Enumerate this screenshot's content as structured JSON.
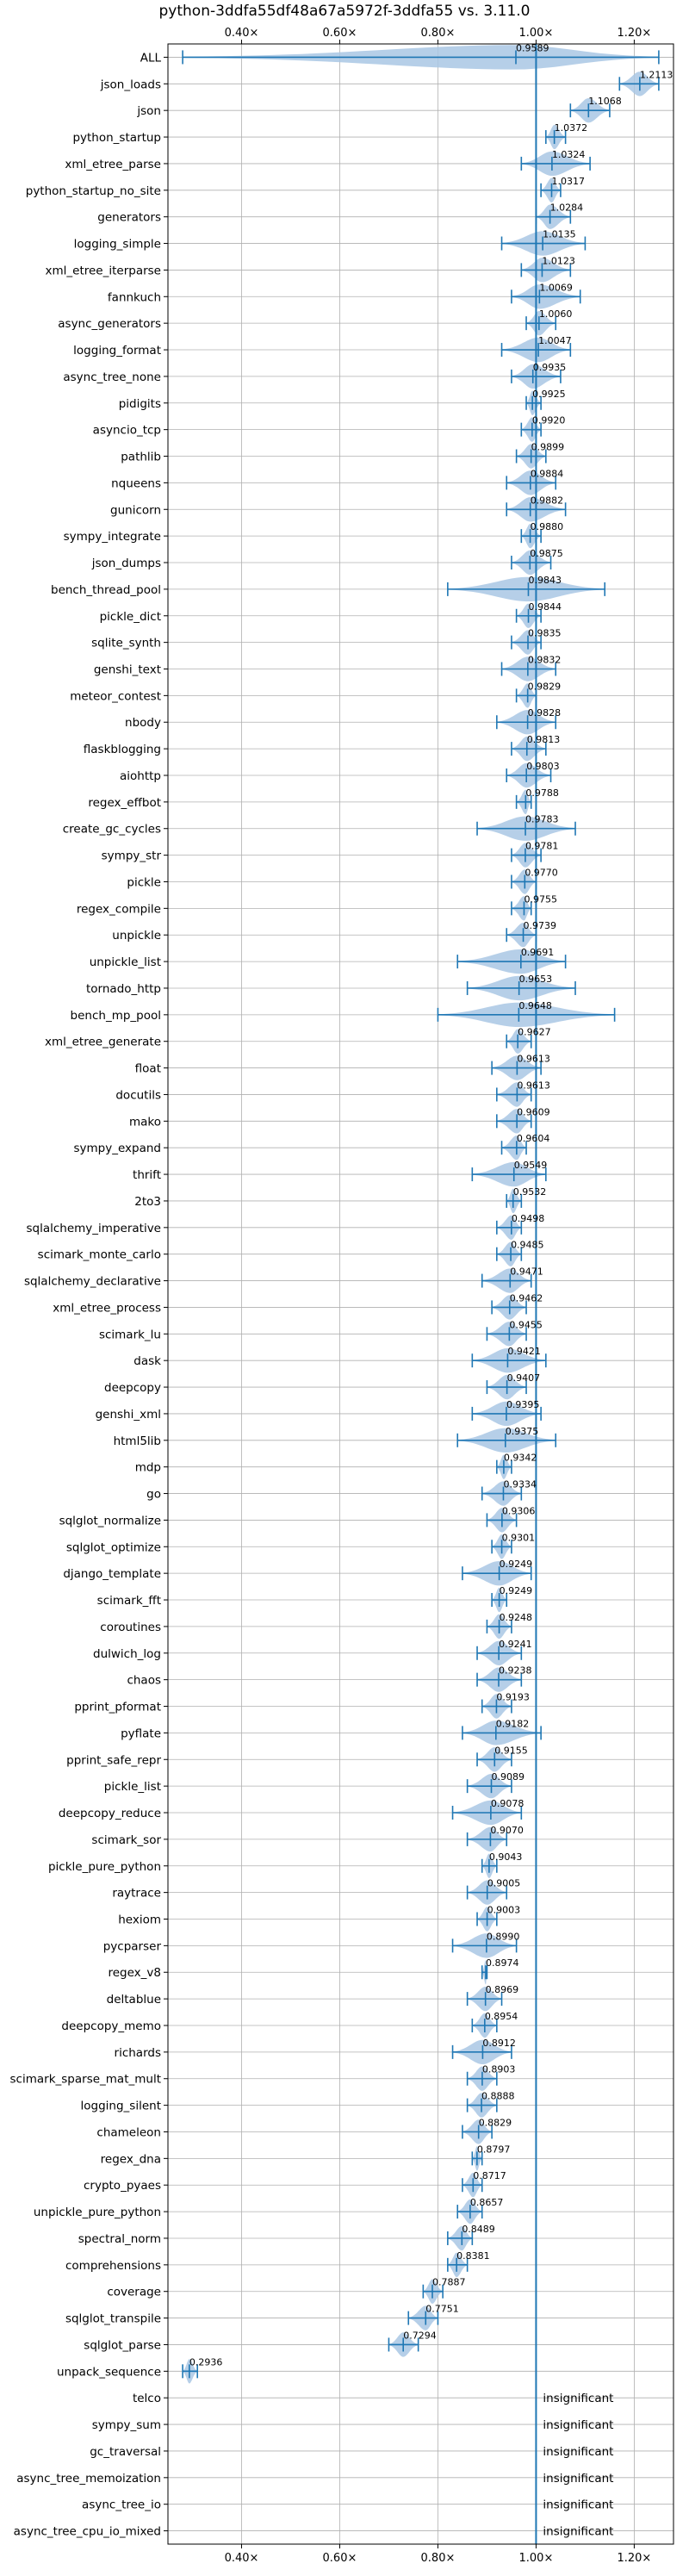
{
  "chart_data": {
    "type": "violin",
    "title": "python-3ddfa55df48a67a5972f-3ddfa55 vs. 3.11.0",
    "xlim": [
      0.25,
      1.28
    ],
    "x_ticks": [
      0.4,
      0.6,
      0.8,
      1.0,
      1.2
    ],
    "x_tick_labels": [
      "0.40×",
      "0.60×",
      "0.80×",
      "1.00×",
      "1.20×"
    ],
    "reference_line": 1.0,
    "grid": true,
    "insignificant_label": "insignificant",
    "benchmarks": [
      {
        "name": "ALL",
        "value": 0.9589,
        "label": "0.9589",
        "low": 0.28,
        "high": 1.25
      },
      {
        "name": "json_loads",
        "value": 1.2113,
        "label": "1.2113",
        "low": 1.17,
        "high": 1.25
      },
      {
        "name": "json",
        "value": 1.1068,
        "label": "1.1068",
        "low": 1.07,
        "high": 1.15
      },
      {
        "name": "python_startup",
        "value": 1.0372,
        "label": "1.0372",
        "low": 1.02,
        "high": 1.06
      },
      {
        "name": "xml_etree_parse",
        "value": 1.0324,
        "label": "1.0324",
        "low": 0.97,
        "high": 1.11
      },
      {
        "name": "python_startup_no_site",
        "value": 1.0317,
        "label": "1.0317",
        "low": 1.01,
        "high": 1.05
      },
      {
        "name": "generators",
        "value": 1.0284,
        "label": "1.0284",
        "low": 1.0,
        "high": 1.07
      },
      {
        "name": "logging_simple",
        "value": 1.0135,
        "label": "1.0135",
        "low": 0.93,
        "high": 1.1
      },
      {
        "name": "xml_etree_iterparse",
        "value": 1.0123,
        "label": "1.0123",
        "low": 0.97,
        "high": 1.07
      },
      {
        "name": "fannkuch",
        "value": 1.0069,
        "label": "1.0069",
        "low": 0.95,
        "high": 1.09
      },
      {
        "name": "async_generators",
        "value": 1.006,
        "label": "1.0060",
        "low": 0.98,
        "high": 1.04
      },
      {
        "name": "logging_format",
        "value": 1.0047,
        "label": "1.0047",
        "low": 0.93,
        "high": 1.07
      },
      {
        "name": "async_tree_none",
        "value": 0.9935,
        "label": "0.9935",
        "low": 0.95,
        "high": 1.05
      },
      {
        "name": "pidigits",
        "value": 0.9925,
        "label": "0.9925",
        "low": 0.98,
        "high": 1.01
      },
      {
        "name": "asyncio_tcp",
        "value": 0.992,
        "label": "0.9920",
        "low": 0.97,
        "high": 1.01
      },
      {
        "name": "pathlib",
        "value": 0.9899,
        "label": "0.9899",
        "low": 0.96,
        "high": 1.02
      },
      {
        "name": "nqueens",
        "value": 0.9884,
        "label": "0.9884",
        "low": 0.94,
        "high": 1.04
      },
      {
        "name": "gunicorn",
        "value": 0.9882,
        "label": "0.9882",
        "low": 0.94,
        "high": 1.06
      },
      {
        "name": "sympy_integrate",
        "value": 0.988,
        "label": "0.9880",
        "low": 0.97,
        "high": 1.01
      },
      {
        "name": "json_dumps",
        "value": 0.9875,
        "label": "0.9875",
        "low": 0.95,
        "high": 1.03
      },
      {
        "name": "bench_thread_pool",
        "value": 0.9843,
        "label": "0.9843",
        "low": 0.82,
        "high": 1.14
      },
      {
        "name": "pickle_dict",
        "value": 0.9844,
        "label": "0.9844",
        "low": 0.96,
        "high": 1.01
      },
      {
        "name": "sqlite_synth",
        "value": 0.9835,
        "label": "0.9835",
        "low": 0.95,
        "high": 1.01
      },
      {
        "name": "genshi_text",
        "value": 0.9832,
        "label": "0.9832",
        "low": 0.93,
        "high": 1.04
      },
      {
        "name": "meteor_contest",
        "value": 0.9829,
        "label": "0.9829",
        "low": 0.96,
        "high": 1.0
      },
      {
        "name": "nbody",
        "value": 0.9828,
        "label": "0.9828",
        "low": 0.92,
        "high": 1.04
      },
      {
        "name": "flaskblogging",
        "value": 0.9813,
        "label": "0.9813",
        "low": 0.95,
        "high": 1.02
      },
      {
        "name": "aiohttp",
        "value": 0.9803,
        "label": "0.9803",
        "low": 0.94,
        "high": 1.03
      },
      {
        "name": "regex_effbot",
        "value": 0.9788,
        "label": "0.9788",
        "low": 0.96,
        "high": 0.99
      },
      {
        "name": "create_gc_cycles",
        "value": 0.9783,
        "label": "0.9783",
        "low": 0.88,
        "high": 1.08
      },
      {
        "name": "sympy_str",
        "value": 0.9781,
        "label": "0.9781",
        "low": 0.95,
        "high": 1.01
      },
      {
        "name": "pickle",
        "value": 0.977,
        "label": "0.9770",
        "low": 0.95,
        "high": 1.0
      },
      {
        "name": "regex_compile",
        "value": 0.9755,
        "label": "0.9755",
        "low": 0.95,
        "high": 0.99
      },
      {
        "name": "unpickle",
        "value": 0.9739,
        "label": "0.9739",
        "low": 0.94,
        "high": 1.0
      },
      {
        "name": "unpickle_list",
        "value": 0.9691,
        "label": "0.9691",
        "low": 0.84,
        "high": 1.06
      },
      {
        "name": "tornado_http",
        "value": 0.9653,
        "label": "0.9653",
        "low": 0.86,
        "high": 1.08
      },
      {
        "name": "bench_mp_pool",
        "value": 0.9648,
        "label": "0.9648",
        "low": 0.8,
        "high": 1.16
      },
      {
        "name": "xml_etree_generate",
        "value": 0.9627,
        "label": "0.9627",
        "low": 0.94,
        "high": 0.99
      },
      {
        "name": "float",
        "value": 0.9613,
        "label": "0.9613",
        "low": 0.91,
        "high": 1.01
      },
      {
        "name": "docutils",
        "value": 0.9613,
        "label": "0.9613",
        "low": 0.92,
        "high": 0.99
      },
      {
        "name": "mako",
        "value": 0.9609,
        "label": "0.9609",
        "low": 0.92,
        "high": 0.99
      },
      {
        "name": "sympy_expand",
        "value": 0.9604,
        "label": "0.9604",
        "low": 0.93,
        "high": 0.98
      },
      {
        "name": "thrift",
        "value": 0.9549,
        "label": "0.9549",
        "low": 0.87,
        "high": 1.02
      },
      {
        "name": "2to3",
        "value": 0.9532,
        "label": "0.9532",
        "low": 0.94,
        "high": 0.97
      },
      {
        "name": "sqlalchemy_imperative",
        "value": 0.9498,
        "label": "0.9498",
        "low": 0.92,
        "high": 0.97
      },
      {
        "name": "scimark_monte_carlo",
        "value": 0.9485,
        "label": "0.9485",
        "low": 0.92,
        "high": 0.97
      },
      {
        "name": "sqlalchemy_declarative",
        "value": 0.9471,
        "label": "0.9471",
        "low": 0.89,
        "high": 0.99
      },
      {
        "name": "xml_etree_process",
        "value": 0.9462,
        "label": "0.9462",
        "low": 0.91,
        "high": 0.98
      },
      {
        "name": "scimark_lu",
        "value": 0.9455,
        "label": "0.9455",
        "low": 0.9,
        "high": 0.98
      },
      {
        "name": "dask",
        "value": 0.9421,
        "label": "0.9421",
        "low": 0.87,
        "high": 1.02
      },
      {
        "name": "deepcopy",
        "value": 0.9407,
        "label": "0.9407",
        "low": 0.9,
        "high": 0.98
      },
      {
        "name": "genshi_xml",
        "value": 0.9395,
        "label": "0.9395",
        "low": 0.87,
        "high": 1.01
      },
      {
        "name": "html5lib",
        "value": 0.9375,
        "label": "0.9375",
        "low": 0.84,
        "high": 1.04
      },
      {
        "name": "mdp",
        "value": 0.9342,
        "label": "0.9342",
        "low": 0.92,
        "high": 0.95
      },
      {
        "name": "go",
        "value": 0.9334,
        "label": "0.9334",
        "low": 0.89,
        "high": 0.97
      },
      {
        "name": "sqlglot_normalize",
        "value": 0.9306,
        "label": "0.9306",
        "low": 0.9,
        "high": 0.96
      },
      {
        "name": "sqlglot_optimize",
        "value": 0.9301,
        "label": "0.9301",
        "low": 0.91,
        "high": 0.95
      },
      {
        "name": "django_template",
        "value": 0.9249,
        "label": "0.9249",
        "low": 0.85,
        "high": 0.99
      },
      {
        "name": "scimark_fft",
        "value": 0.9249,
        "label": "0.9249",
        "low": 0.91,
        "high": 0.94
      },
      {
        "name": "coroutines",
        "value": 0.9248,
        "label": "0.9248",
        "low": 0.9,
        "high": 0.95
      },
      {
        "name": "dulwich_log",
        "value": 0.9241,
        "label": "0.9241",
        "low": 0.88,
        "high": 0.97
      },
      {
        "name": "chaos",
        "value": 0.9238,
        "label": "0.9238",
        "low": 0.88,
        "high": 0.97
      },
      {
        "name": "pprint_pformat",
        "value": 0.9193,
        "label": "0.9193",
        "low": 0.89,
        "high": 0.95
      },
      {
        "name": "pyflate",
        "value": 0.9182,
        "label": "0.9182",
        "low": 0.85,
        "high": 1.01
      },
      {
        "name": "pprint_safe_repr",
        "value": 0.9155,
        "label": "0.9155",
        "low": 0.88,
        "high": 0.95
      },
      {
        "name": "pickle_list",
        "value": 0.9089,
        "label": "0.9089",
        "low": 0.86,
        "high": 0.95
      },
      {
        "name": "deepcopy_reduce",
        "value": 0.9078,
        "label": "0.9078",
        "low": 0.83,
        "high": 0.97
      },
      {
        "name": "scimark_sor",
        "value": 0.907,
        "label": "0.9070",
        "low": 0.86,
        "high": 0.94
      },
      {
        "name": "pickle_pure_python",
        "value": 0.9043,
        "label": "0.9043",
        "low": 0.89,
        "high": 0.92
      },
      {
        "name": "raytrace",
        "value": 0.9005,
        "label": "0.9005",
        "low": 0.86,
        "high": 0.94
      },
      {
        "name": "hexiom",
        "value": 0.9003,
        "label": "0.9003",
        "low": 0.88,
        "high": 0.92
      },
      {
        "name": "pycparser",
        "value": 0.899,
        "label": "0.8990",
        "low": 0.83,
        "high": 0.96
      },
      {
        "name": "regex_v8",
        "value": 0.8974,
        "label": "0.8974",
        "low": 0.89,
        "high": 0.9
      },
      {
        "name": "deltablue",
        "value": 0.8969,
        "label": "0.8969",
        "low": 0.86,
        "high": 0.93
      },
      {
        "name": "deepcopy_memo",
        "value": 0.8954,
        "label": "0.8954",
        "low": 0.87,
        "high": 0.92
      },
      {
        "name": "richards",
        "value": 0.8912,
        "label": "0.8912",
        "low": 0.83,
        "high": 0.95
      },
      {
        "name": "scimark_sparse_mat_mult",
        "value": 0.8903,
        "label": "0.8903",
        "low": 0.86,
        "high": 0.92
      },
      {
        "name": "logging_silent",
        "value": 0.8888,
        "label": "0.8888",
        "low": 0.86,
        "high": 0.92
      },
      {
        "name": "chameleon",
        "value": 0.8829,
        "label": "0.8829",
        "low": 0.85,
        "high": 0.91
      },
      {
        "name": "regex_dna",
        "value": 0.8797,
        "label": "0.8797",
        "low": 0.87,
        "high": 0.89
      },
      {
        "name": "crypto_pyaes",
        "value": 0.8717,
        "label": "0.8717",
        "low": 0.85,
        "high": 0.89
      },
      {
        "name": "unpickle_pure_python",
        "value": 0.8657,
        "label": "0.8657",
        "low": 0.84,
        "high": 0.89
      },
      {
        "name": "spectral_norm",
        "value": 0.8489,
        "label": "0.8489",
        "low": 0.82,
        "high": 0.87
      },
      {
        "name": "comprehensions",
        "value": 0.8381,
        "label": "0.8381",
        "low": 0.82,
        "high": 0.86
      },
      {
        "name": "coverage",
        "value": 0.7887,
        "label": "0.7887",
        "low": 0.77,
        "high": 0.81
      },
      {
        "name": "sqlglot_transpile",
        "value": 0.7751,
        "label": "0.7751",
        "low": 0.74,
        "high": 0.8
      },
      {
        "name": "sqlglot_parse",
        "value": 0.7294,
        "label": "0.7294",
        "low": 0.7,
        "high": 0.76
      },
      {
        "name": "unpack_sequence",
        "value": 0.2936,
        "label": "0.2936",
        "low": 0.28,
        "high": 0.31
      },
      {
        "name": "telco",
        "value": null,
        "label": "",
        "low": null,
        "high": null
      },
      {
        "name": "sympy_sum",
        "value": null,
        "label": "",
        "low": null,
        "high": null
      },
      {
        "name": "gc_traversal",
        "value": null,
        "label": "",
        "low": null,
        "high": null
      },
      {
        "name": "async_tree_memoization",
        "value": null,
        "label": "",
        "low": null,
        "high": null
      },
      {
        "name": "async_tree_io",
        "value": null,
        "label": "",
        "low": null,
        "high": null
      },
      {
        "name": "async_tree_cpu_io_mixed",
        "value": null,
        "label": "",
        "low": null,
        "high": null
      }
    ],
    "colors": {
      "violin_fill": "#a9c7e4",
      "error_bar": "#1f77b4",
      "reference_line": "#1f77b4",
      "grid": "#b0b0b0"
    }
  }
}
